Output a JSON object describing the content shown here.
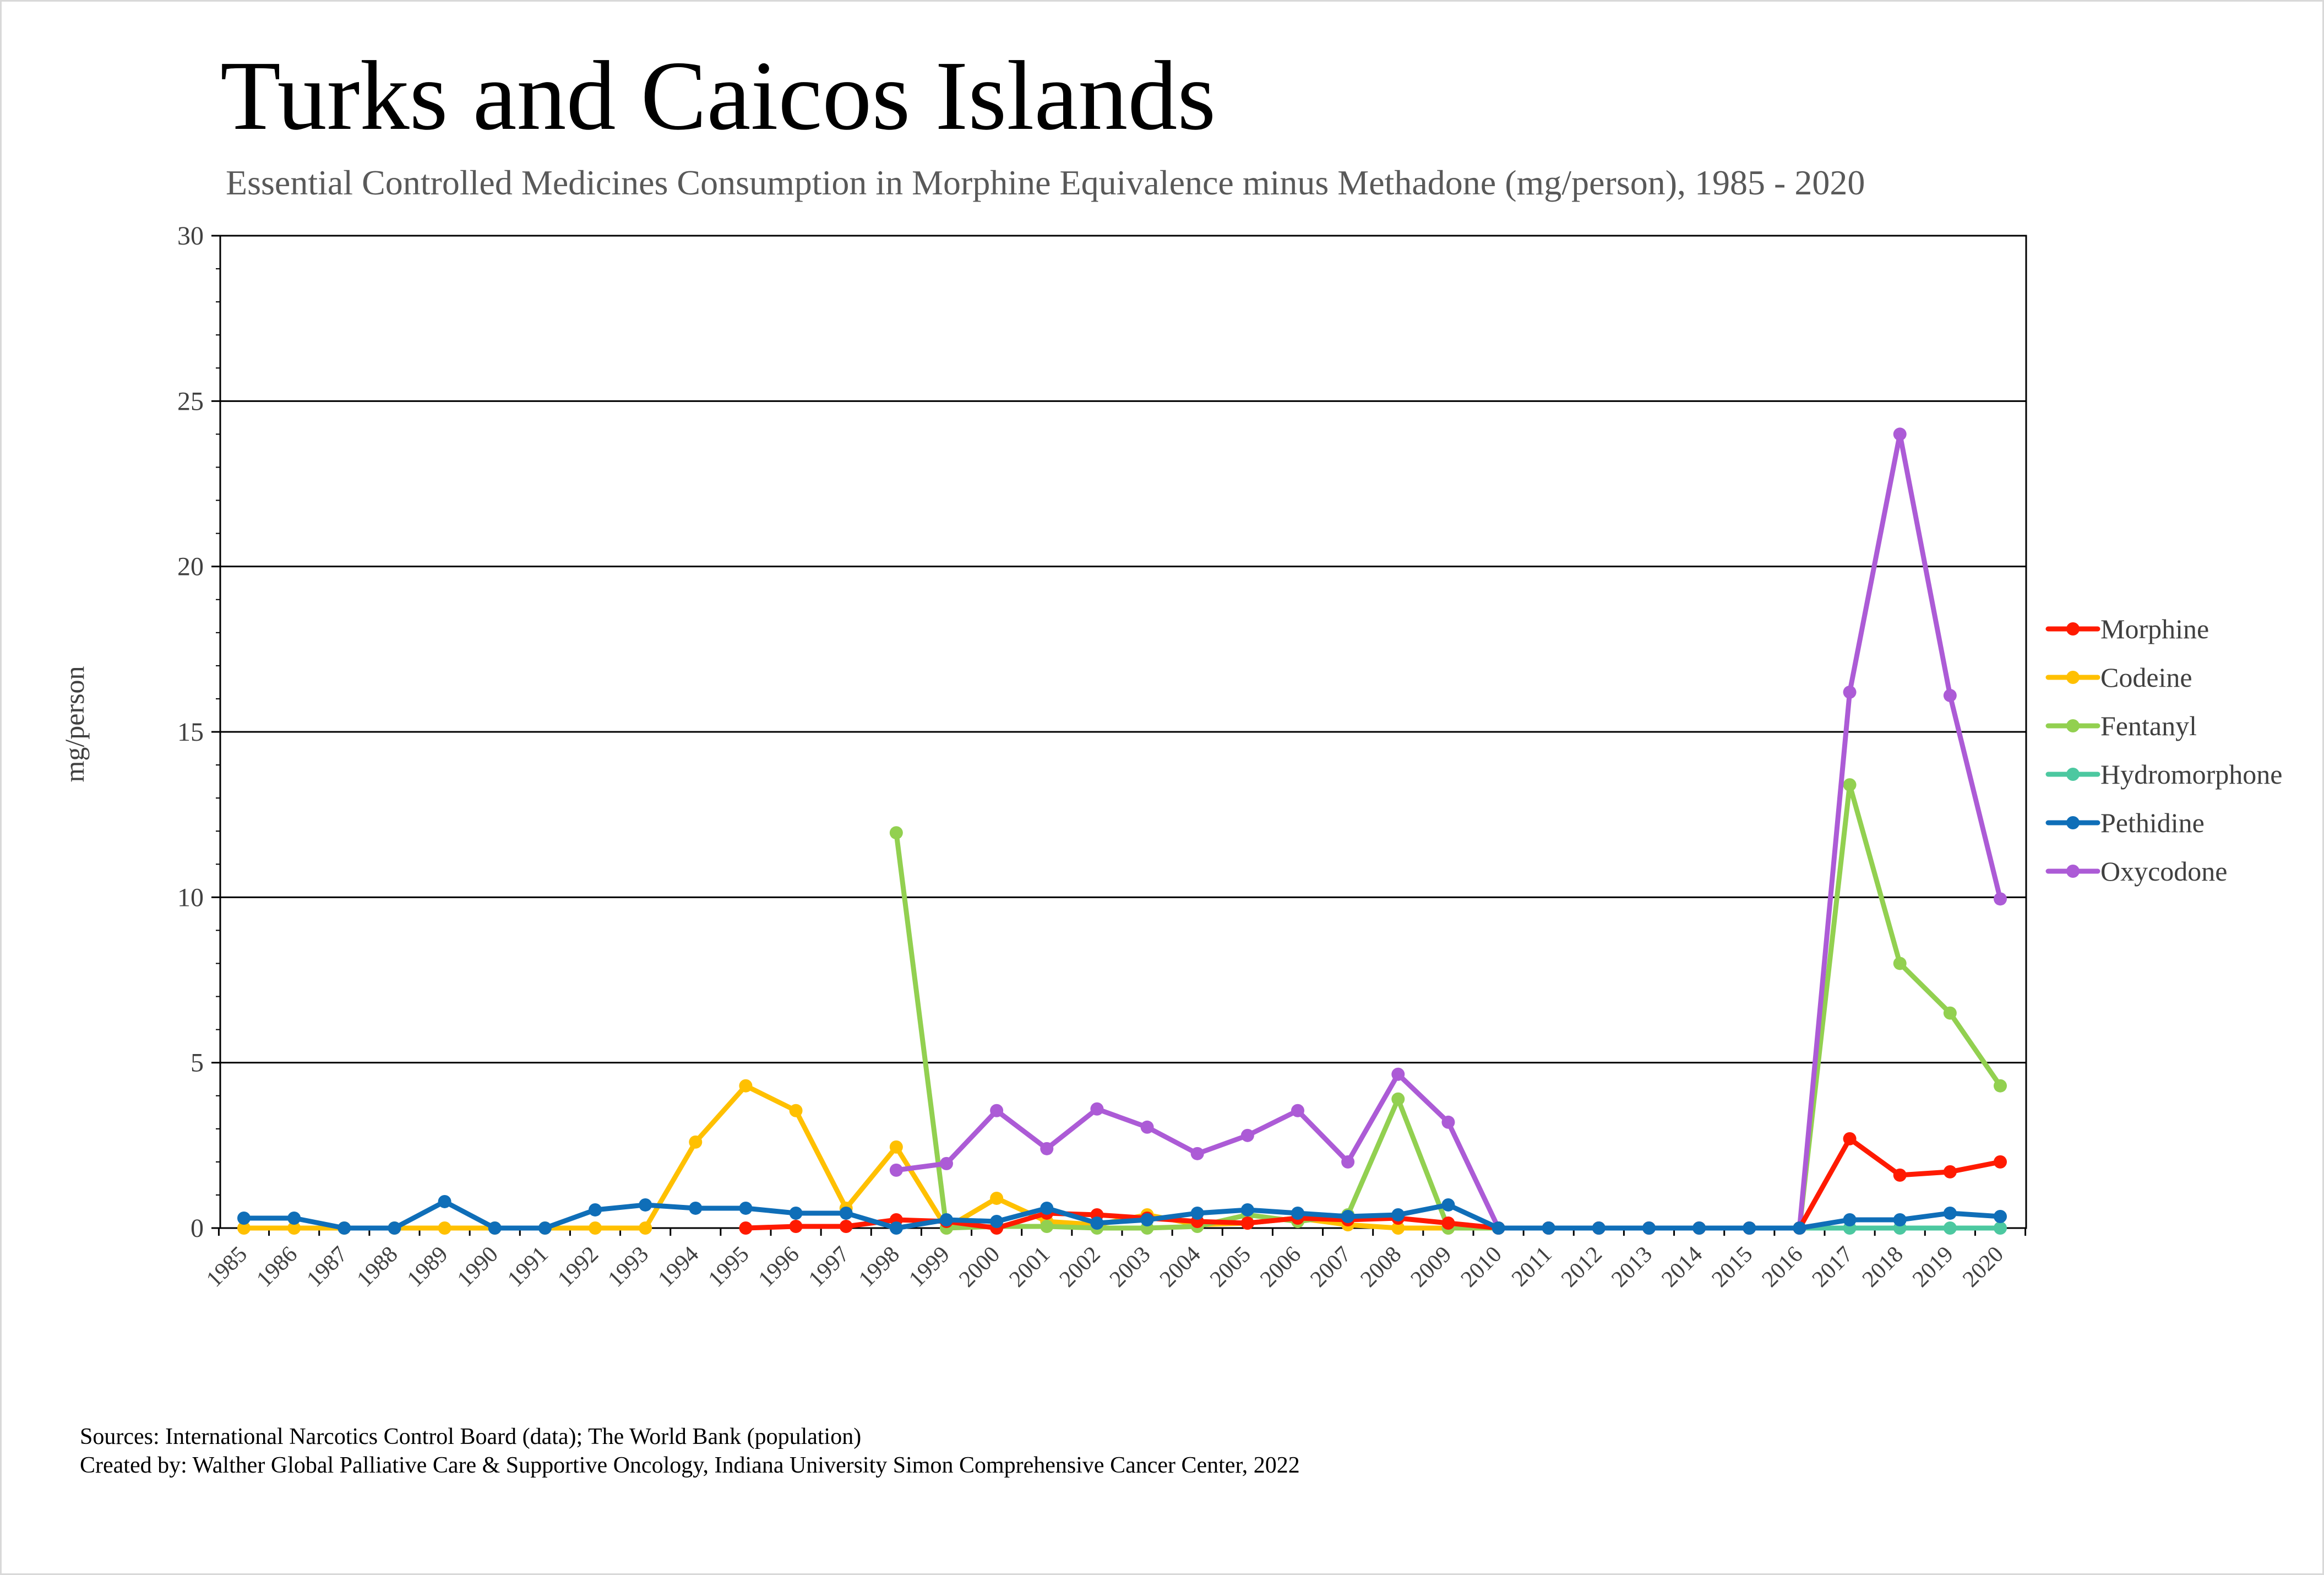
{
  "title": "Turks and Caicos Islands",
  "subtitle": "Essential Controlled Medicines Consumption in Morphine Equivalence minus Methadone (mg/person), 1985 - 2020",
  "sources": {
    "line1": "Sources: International Narcotics Control Board (data); The World Bank (population)",
    "line2": "Created by: Walther Global Palliative Care & Supportive Oncology, Indiana University Simon Comprehensive Cancer Center, 2022"
  },
  "chart_data": {
    "type": "line",
    "title": "Turks and Caicos Islands",
    "subtitle": "Essential Controlled Medicines Consumption in Morphine Equivalence minus Methadone (mg/person), 1985 - 2020",
    "xlabel": "",
    "ylabel": "mg/person",
    "ylim": [
      0,
      30
    ],
    "yticks": [
      0,
      5,
      10,
      15,
      20,
      25,
      30
    ],
    "grid": "horizontal major gridlines",
    "legend": "right",
    "x": [
      "1985",
      "1986",
      "1987",
      "1988",
      "1989",
      "1990",
      "1991",
      "1992",
      "1993",
      "1994",
      "1995",
      "1996",
      "1997",
      "1998",
      "1999",
      "2000",
      "2001",
      "2002",
      "2003",
      "2004",
      "2005",
      "2006",
      "2007",
      "2008",
      "2009",
      "2010",
      "2011",
      "2012",
      "2013",
      "2014",
      "2015",
      "2016",
      "2017",
      "2018",
      "2019",
      "2020"
    ],
    "series": [
      {
        "name": "Morphine",
        "color": "#ff1a00",
        "values": [
          null,
          null,
          null,
          null,
          null,
          null,
          null,
          null,
          null,
          null,
          0,
          0.05,
          0.05,
          0.25,
          0.2,
          0,
          0.45,
          0.4,
          0.3,
          0.2,
          0.15,
          0.3,
          0.25,
          0.3,
          0.15,
          0,
          0,
          0,
          0,
          0,
          0,
          0,
          2.7,
          1.6,
          1.7,
          2.0
        ]
      },
      {
        "name": "Codeine",
        "color": "#ffc000",
        "values": [
          0,
          0,
          0,
          0,
          0,
          0,
          0,
          0,
          0,
          2.6,
          4.3,
          3.55,
          0.6,
          2.45,
          0,
          0.9,
          0.2,
          0.1,
          0.4,
          0.1,
          0.15,
          0.3,
          0.1,
          0,
          0,
          0,
          null,
          null,
          null,
          null,
          null,
          null,
          null,
          null,
          null,
          null
        ]
      },
      {
        "name": "Fentanyl",
        "color": "#92d050",
        "values": [
          null,
          null,
          null,
          null,
          null,
          null,
          null,
          null,
          null,
          null,
          null,
          null,
          null,
          11.95,
          0,
          0.05,
          0.05,
          0,
          0,
          0.05,
          0.4,
          0.2,
          0.4,
          3.9,
          0,
          0,
          0,
          0,
          0,
          0,
          0,
          0,
          13.4,
          8.0,
          6.5,
          4.3
        ]
      },
      {
        "name": "Hydromorphone",
        "color": "#4cc8a0",
        "values": [
          null,
          null,
          null,
          null,
          null,
          null,
          null,
          null,
          null,
          null,
          null,
          null,
          null,
          null,
          null,
          null,
          null,
          null,
          null,
          null,
          null,
          null,
          null,
          null,
          null,
          null,
          null,
          null,
          null,
          null,
          null,
          0,
          0,
          0,
          0,
          0
        ]
      },
      {
        "name": "Pethidine",
        "color": "#0f6eb8",
        "values": [
          0.3,
          0.3,
          0,
          0,
          0.8,
          0,
          0,
          0.55,
          0.7,
          0.6,
          0.6,
          0.45,
          0.45,
          0,
          0.25,
          0.2,
          0.6,
          0.15,
          0.25,
          0.45,
          0.55,
          0.45,
          0.35,
          0.4,
          0.7,
          0,
          0,
          0,
          0,
          0,
          0,
          0,
          0.25,
          0.25,
          0.45,
          0.35
        ]
      },
      {
        "name": "Oxycodone",
        "color": "#ac5bd6",
        "values": [
          null,
          null,
          null,
          null,
          null,
          null,
          null,
          null,
          null,
          null,
          null,
          null,
          null,
          1.75,
          1.95,
          3.55,
          2.4,
          3.6,
          3.05,
          2.25,
          2.8,
          3.55,
          2.0,
          4.65,
          3.2,
          0,
          0,
          0,
          0,
          0,
          0,
          0,
          16.2,
          24.0,
          16.1,
          9.95
        ]
      }
    ]
  }
}
